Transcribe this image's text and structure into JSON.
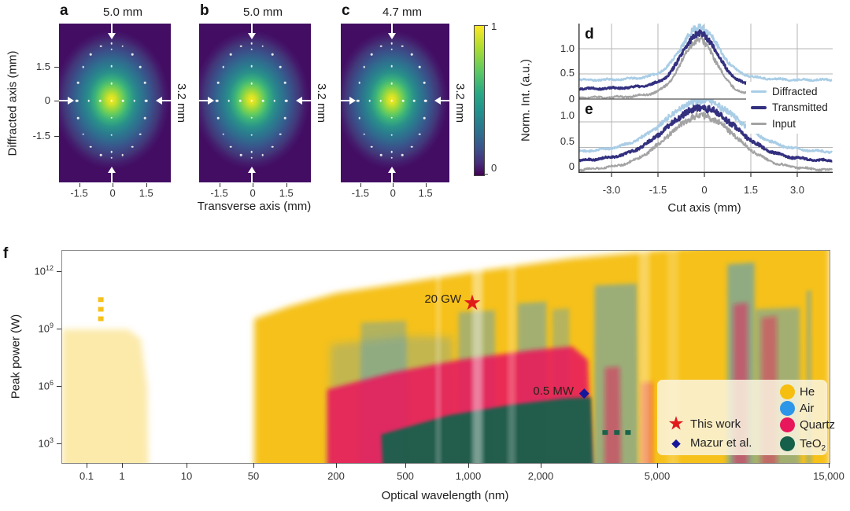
{
  "panels_abc": {
    "x_axis_label": "Transverse axis (mm)",
    "y_axis_label": "Diffracted axis (mm)",
    "y_ticks": [
      "1.5",
      "0",
      "-1.5"
    ],
    "x_ticks": [
      "-1.5",
      "0",
      "1.5"
    ],
    "panels": [
      {
        "letter": "a",
        "width_label": "5.0 mm",
        "height_label": "3.2 mm"
      },
      {
        "letter": "b",
        "width_label": "5.0 mm",
        "height_label": "3.2 mm"
      },
      {
        "letter": "c",
        "width_label": "4.7 mm",
        "height_label": "3.2 mm"
      }
    ],
    "colorbar": {
      "max": "1",
      "min": "0"
    }
  },
  "panels_de": {
    "d_letter": "d",
    "e_letter": "e",
    "y_axis_label": "Norm. Int. (a.u.)",
    "x_axis_label": "Cut axis (mm)",
    "y_ticks": [
      "1.0",
      "0.5",
      "0"
    ],
    "x_ticks": [
      "-3.0",
      "-1.5",
      "0",
      "1.5",
      "3.0"
    ],
    "legend": [
      {
        "label": "Diffracted",
        "color": "#a9cde6"
      },
      {
        "label": "Transmitted",
        "color": "#33307f"
      },
      {
        "label": "Input",
        "color": "#a3a3a3"
      }
    ]
  },
  "panel_f": {
    "letter": "f",
    "y_axis_label": "Peak power (W)",
    "x_axis_label": "Optical wavelength (nm)",
    "y_ticks": [
      {
        "base": "10",
        "exp": "12"
      },
      {
        "base": "10",
        "exp": "9"
      },
      {
        "base": "10",
        "exp": "6"
      },
      {
        "base": "10",
        "exp": "3"
      }
    ],
    "x_ticks": [
      "0.1",
      "1",
      "10",
      "50",
      "200",
      "500",
      "1,000",
      "2,000",
      "5,000",
      "15,000"
    ],
    "annotations": {
      "star": "20 GW",
      "diamond": "0.5 MW"
    },
    "legend": {
      "markers": [
        {
          "type": "star",
          "label": "This work",
          "color": "#e11a1a"
        },
        {
          "type": "diamond",
          "label": "Mazur et al.",
          "color": "#16169b"
        }
      ],
      "materials": [
        {
          "key": "he",
          "label": "He",
          "color": "#f6be0f"
        },
        {
          "key": "air",
          "label": "Air",
          "color": "#2e96e8"
        },
        {
          "key": "quartz",
          "label": "Quartz",
          "color": "#e8175c"
        },
        {
          "key": "teo2",
          "label_base": "TeO",
          "label_sub": "2",
          "color": "#14604a"
        }
      ]
    }
  },
  "chart_data": [
    {
      "id": "d",
      "type": "line",
      "title": "Beam cut profiles (diffracted axis)",
      "x_range": [
        -4.07,
        4.13
      ],
      "ylim": [
        0,
        1.5
      ],
      "x_tick_values": [
        -3,
        -1.5,
        0,
        1.5,
        3
      ],
      "y_grid_values": [
        0.5,
        1.0
      ],
      "series": [
        {
          "name": "Input",
          "baseline": 0.03,
          "peak": 1.18,
          "center": -0.18,
          "sigma": 0.52,
          "color": "#a3a3a3",
          "width": 2,
          "seed": 33
        },
        {
          "name": "Diffracted",
          "baseline": 0.38,
          "peak": 1.43,
          "center": -0.15,
          "sigma": 0.56,
          "color": "#a9cde6",
          "width": 2.3,
          "seed": 11
        },
        {
          "name": "Transmitted",
          "baseline": 0.21,
          "peak": 1.31,
          "center": -0.15,
          "sigma": 0.54,
          "color": "#33307f",
          "width": 2.8,
          "seed": 22
        }
      ]
    },
    {
      "id": "e",
      "type": "line",
      "title": "Beam cut profiles (transverse axis)",
      "x_range": [
        -4.07,
        4.13
      ],
      "ylim": [
        0,
        1.45
      ],
      "x_tick_values": [
        -3,
        -1.5,
        0,
        1.5,
        3
      ],
      "y_grid_values": [
        0.5,
        1.0
      ],
      "series": [
        {
          "name": "Input",
          "baseline": 0.03,
          "peak": 1.12,
          "center": -0.1,
          "sigma": 1.05,
          "color": "#a3a3a3",
          "width": 2,
          "seed": 66
        },
        {
          "name": "Diffracted",
          "baseline": 0.38,
          "peak": 1.42,
          "center": -0.08,
          "sigma": 1.12,
          "color": "#a9cde6",
          "width": 2.3,
          "seed": 44
        },
        {
          "name": "Transmitted",
          "baseline": 0.21,
          "peak": 1.27,
          "center": -0.1,
          "sigma": 1.08,
          "color": "#33307f",
          "width": 2.8,
          "seed": 55
        }
      ]
    },
    {
      "id": "f",
      "type": "area",
      "title": "Peak power vs optical wavelength for acousto-optic media",
      "xlabel": "Optical wavelength (nm)",
      "ylabel": "Peak power (W)",
      "x_scale": "log-custom",
      "x_tick_values": [
        0.1,
        1,
        10,
        50,
        200,
        500,
        1000,
        2000,
        5000,
        15000
      ],
      "y_tick_logs": [
        12,
        9,
        6,
        3
      ],
      "ylim_log": [
        2,
        13.1
      ],
      "materials": {
        "he": "#f6be0f",
        "air": "#2e96e8",
        "quartz": "#e8175c",
        "teo2": "#14604a",
        "white": "#ffffff"
      },
      "regions": [
        {
          "mat": "he",
          "opacity": 0.33,
          "blur": 4,
          "pts": [
            [
              0.02,
              9.0
            ],
            [
              1.2,
              9.0
            ],
            [
              1.9,
              8.5
            ],
            [
              2.4,
              6.0
            ],
            [
              2.5,
              1.5
            ],
            [
              0.02,
              1.5
            ]
          ]
        },
        {
          "mat": "he",
          "opacity": 0.95,
          "blur": 4,
          "pts": [
            [
              50,
              9.55
            ],
            [
              90,
              10.2
            ],
            [
              200,
              10.9
            ],
            [
              500,
              11.45
            ],
            [
              1100,
              12.05
            ],
            [
              2500,
              12.7
            ],
            [
              8000,
              13.5
            ],
            [
              15000,
              13.8
            ],
            [
              15000,
              1.5
            ],
            [
              50,
              1.5
            ]
          ]
        },
        {
          "mat": "air",
          "opacity": 0.26,
          "blur": 5,
          "pts": [
            [
              180,
              8.2
            ],
            [
              500,
              8.65
            ],
            [
              830,
              8.6
            ],
            [
              870,
              1.5
            ],
            [
              175,
              1.5
            ]
          ]
        },
        {
          "mat": "air",
          "opacity": 0.33,
          "blur": 3,
          "pts": [
            [
              275,
              9.35
            ],
            [
              500,
              9.45
            ],
            [
              512,
              1.5
            ],
            [
              270,
              1.5
            ]
          ]
        },
        {
          "mat": "air",
          "opacity": 0.38,
          "blur": 3,
          "pts": [
            [
              890,
              9.9
            ],
            [
              1280,
              10.0
            ],
            [
              1295,
              1.5
            ],
            [
              885,
              1.5
            ]
          ]
        },
        {
          "mat": "air",
          "opacity": 0.42,
          "blur": 3,
          "pts": [
            [
              1590,
              10.35
            ],
            [
              2080,
              10.45
            ],
            [
              2095,
              1.5
            ],
            [
              1585,
              1.5
            ]
          ]
        },
        {
          "mat": "air",
          "opacity": 0.32,
          "blur": 3,
          "pts": [
            [
              2180,
              10.05
            ],
            [
              2490,
              10.1
            ],
            [
              2500,
              1.5
            ],
            [
              2175,
              1.5
            ]
          ]
        },
        {
          "mat": "quartz",
          "opacity": 0.88,
          "blur": 3,
          "pts": [
            [
              170,
              5.85
            ],
            [
              420,
              6.75
            ],
            [
              900,
              7.4
            ],
            [
              1800,
              7.9
            ],
            [
              2550,
              8.1
            ],
            [
              2880,
              7.4
            ],
            [
              2990,
              1.5
            ],
            [
              170,
              1.5
            ]
          ]
        },
        {
          "mat": "teo2",
          "opacity": 0.94,
          "blur": 2,
          "pts": [
            [
              360,
              3.5
            ],
            [
              800,
              4.5
            ],
            [
              1500,
              5.05
            ],
            [
              2400,
              5.38
            ],
            [
              2950,
              5.45
            ],
            [
              3010,
              1.5
            ],
            [
              368,
              1.5
            ]
          ]
        },
        {
          "mat": "air",
          "opacity": 0.45,
          "blur": 3,
          "pts": [
            [
              3040,
              11.3
            ],
            [
              4240,
              11.4
            ],
            [
              4290,
              1.5
            ],
            [
              3015,
              1.5
            ]
          ]
        },
        {
          "mat": "air",
          "opacity": 0.5,
          "blur": 3,
          "pts": [
            [
              7800,
              12.4
            ],
            [
              9280,
              12.5
            ],
            [
              9300,
              1.5
            ],
            [
              7790,
              1.5
            ]
          ]
        },
        {
          "mat": "air",
          "opacity": 0.42,
          "blur": 3,
          "pts": [
            [
              9320,
              10.05
            ],
            [
              12400,
              10.15
            ],
            [
              12420,
              1.5
            ],
            [
              9310,
              1.5
            ]
          ]
        },
        {
          "mat": "air",
          "opacity": 0.3,
          "blur": 2,
          "pts": [
            [
              12900,
              11.0
            ],
            [
              13400,
              11.05
            ],
            [
              13420,
              1.5
            ],
            [
              12890,
              1.5
            ]
          ]
        },
        {
          "mat": "quartz",
          "opacity": 0.5,
          "blur": 3,
          "pts": [
            [
              3290,
              7.0
            ],
            [
              3700,
              7.05
            ],
            [
              3740,
              1.5
            ],
            [
              3280,
              1.5
            ]
          ]
        },
        {
          "mat": "quartz",
          "opacity": 0.42,
          "blur": 3,
          "pts": [
            [
              4390,
              6.2
            ],
            [
              4790,
              6.25
            ],
            [
              4800,
              1.5
            ],
            [
              4385,
              1.5
            ]
          ]
        },
        {
          "mat": "quartz",
          "opacity": 0.5,
          "blur": 3,
          "pts": [
            [
              8100,
              10.3
            ],
            [
              8880,
              10.4
            ],
            [
              8900,
              1.5
            ],
            [
              8090,
              1.5
            ]
          ]
        },
        {
          "mat": "quartz",
          "opacity": 0.45,
          "blur": 3,
          "pts": [
            [
              9700,
              9.6
            ],
            [
              10700,
              9.7
            ],
            [
              10720,
              1.5
            ],
            [
              9690,
              1.5
            ]
          ]
        },
        {
          "mat": "white",
          "opacity": 0.4,
          "blur": 3,
          "pts": [
            [
              1030,
              13.8
            ],
            [
              1140,
              13.8
            ],
            [
              1140,
              1.5
            ],
            [
              1030,
              1.5
            ]
          ]
        },
        {
          "mat": "white",
          "opacity": 0.22,
          "blur": 3,
          "pts": [
            [
              1450,
              13.8
            ],
            [
              1560,
              13.8
            ],
            [
              1560,
              1.5
            ],
            [
              1450,
              1.5
            ]
          ]
        },
        {
          "mat": "white",
          "opacity": 0.3,
          "blur": 3,
          "pts": [
            [
              4300,
              13.8
            ],
            [
              4680,
              13.8
            ],
            [
              4680,
              1.5
            ],
            [
              4300,
              1.5
            ]
          ]
        },
        {
          "mat": "white",
          "opacity": 0.18,
          "blur": 3,
          "pts": [
            [
              5300,
              13.8
            ],
            [
              5700,
              13.8
            ],
            [
              5700,
              1.5
            ],
            [
              5300,
              1.5
            ]
          ]
        },
        {
          "mat": "white",
          "opacity": 0.2,
          "blur": 2,
          "pts": [
            [
              690,
              13.8
            ],
            [
              735,
              13.8
            ],
            [
              735,
              1.5
            ],
            [
              690,
              1.5
            ]
          ]
        }
      ],
      "dashed_markers": [
        {
          "mat": "he",
          "points": [
            [
              0.24,
              9.55
            ],
            [
              0.24,
              10.05
            ],
            [
              0.24,
              10.55
            ]
          ]
        },
        {
          "mat": "teo2",
          "points": [
            [
              3300,
              3.6
            ],
            [
              3620,
              3.6
            ],
            [
              3950,
              3.6
            ]
          ]
        }
      ],
      "points": [
        {
          "name": "This work",
          "annotation": "20 GW",
          "marker": "star",
          "x_nm": 1030,
          "power_w": 20000000000.0,
          "log_w": 10.32
        },
        {
          "name": "Mazur et al.",
          "annotation": "0.5 MW",
          "marker": "diamond",
          "x_nm": 2800,
          "power_w": 500000.0,
          "log_w": 5.66
        }
      ]
    }
  ]
}
